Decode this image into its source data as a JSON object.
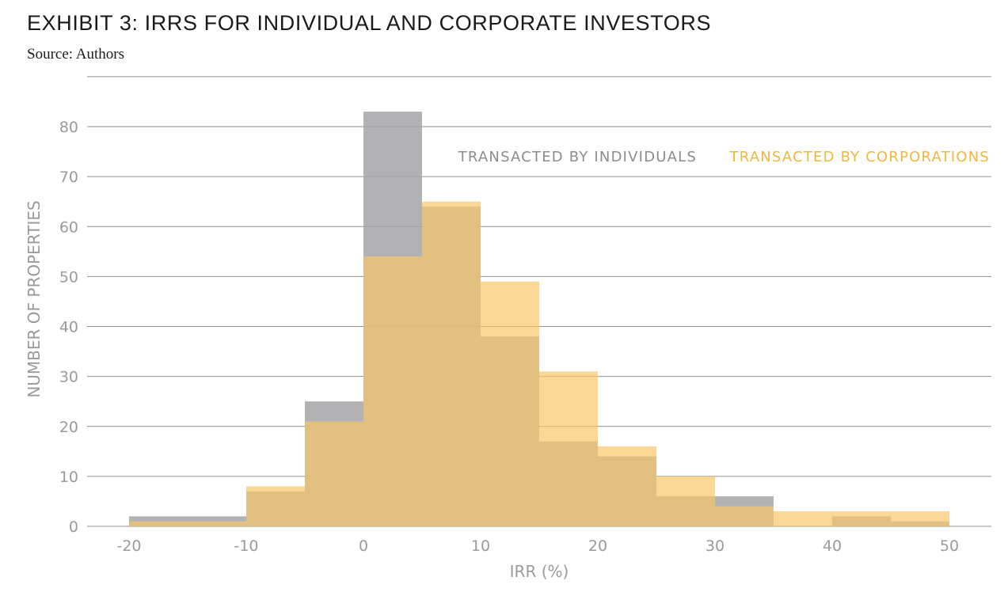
{
  "header": {
    "title": "EXHIBIT 3: IRRS FOR INDIVIDUAL AND CORPORATE INVESTORS",
    "source": "Source: Authors"
  },
  "colors": {
    "individuals": "#a5a5a8",
    "corporations": "#f6c869",
    "individuals_text": "#8c8c8c",
    "corporations_text": "#f0b73e",
    "grid": "#8f8f8f",
    "axis_text": "#9a9a9a"
  },
  "chart_data": {
    "type": "bar",
    "title": "",
    "xlabel": "IRR (%)",
    "ylabel": "NUMBER OF PROPERTIES",
    "bin_edges": [
      -20,
      -15,
      -10,
      -5,
      0,
      5,
      10,
      15,
      20,
      25,
      30,
      35,
      40,
      45,
      50
    ],
    "series": [
      {
        "name": "TRANSACTED BY INDIVIDUALS",
        "values": [
          2,
          2,
          7,
          25,
          83,
          64,
          38,
          17,
          14,
          6,
          6,
          0,
          2,
          1
        ]
      },
      {
        "name": "TRANSACTED BY CORPORATIONS",
        "values": [
          1,
          1,
          8,
          21,
          54,
          65,
          49,
          31,
          16,
          10,
          4,
          3,
          3,
          3
        ]
      }
    ],
    "xticks": [
      "-20",
      "-10",
      "0",
      "10",
      "20",
      "30",
      "40",
      "50"
    ],
    "xtick_values": [
      -20,
      -10,
      0,
      10,
      20,
      30,
      40,
      50
    ],
    "yticks": [
      "0",
      "10",
      "20",
      "30",
      "40",
      "50",
      "60",
      "70",
      "80"
    ],
    "ytick_values": [
      0,
      10,
      20,
      30,
      40,
      50,
      60,
      70,
      80
    ],
    "xlim": [
      -22,
      52
    ],
    "ylim": [
      0,
      90
    ],
    "grid": true,
    "legend_position": "top-right"
  }
}
